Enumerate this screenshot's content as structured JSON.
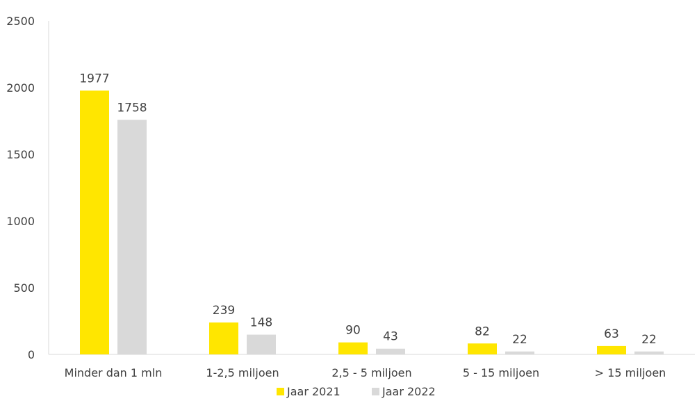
{
  "chart_data": {
    "type": "bar",
    "categories": [
      "Minder dan 1 mln",
      "1-2,5 miljoen",
      "2,5 - 5 miljoen",
      "5 - 15 miljoen",
      "> 15 miljoen"
    ],
    "series": [
      {
        "name": "Jaar 2021",
        "values": [
          1977,
          239,
          90,
          82,
          63
        ],
        "color": "#FFE600"
      },
      {
        "name": "Jaar 2022",
        "values": [
          1758,
          148,
          43,
          22,
          22
        ],
        "color": "#D9D9D9"
      }
    ],
    "ylim": [
      0,
      2500
    ],
    "yticks": [
      0,
      500,
      1000,
      1500,
      2000,
      2500
    ],
    "title": "",
    "xlabel": "",
    "ylabel": "",
    "grid": false,
    "legend_position": "bottom",
    "axis_color": "#D9D9D9"
  }
}
